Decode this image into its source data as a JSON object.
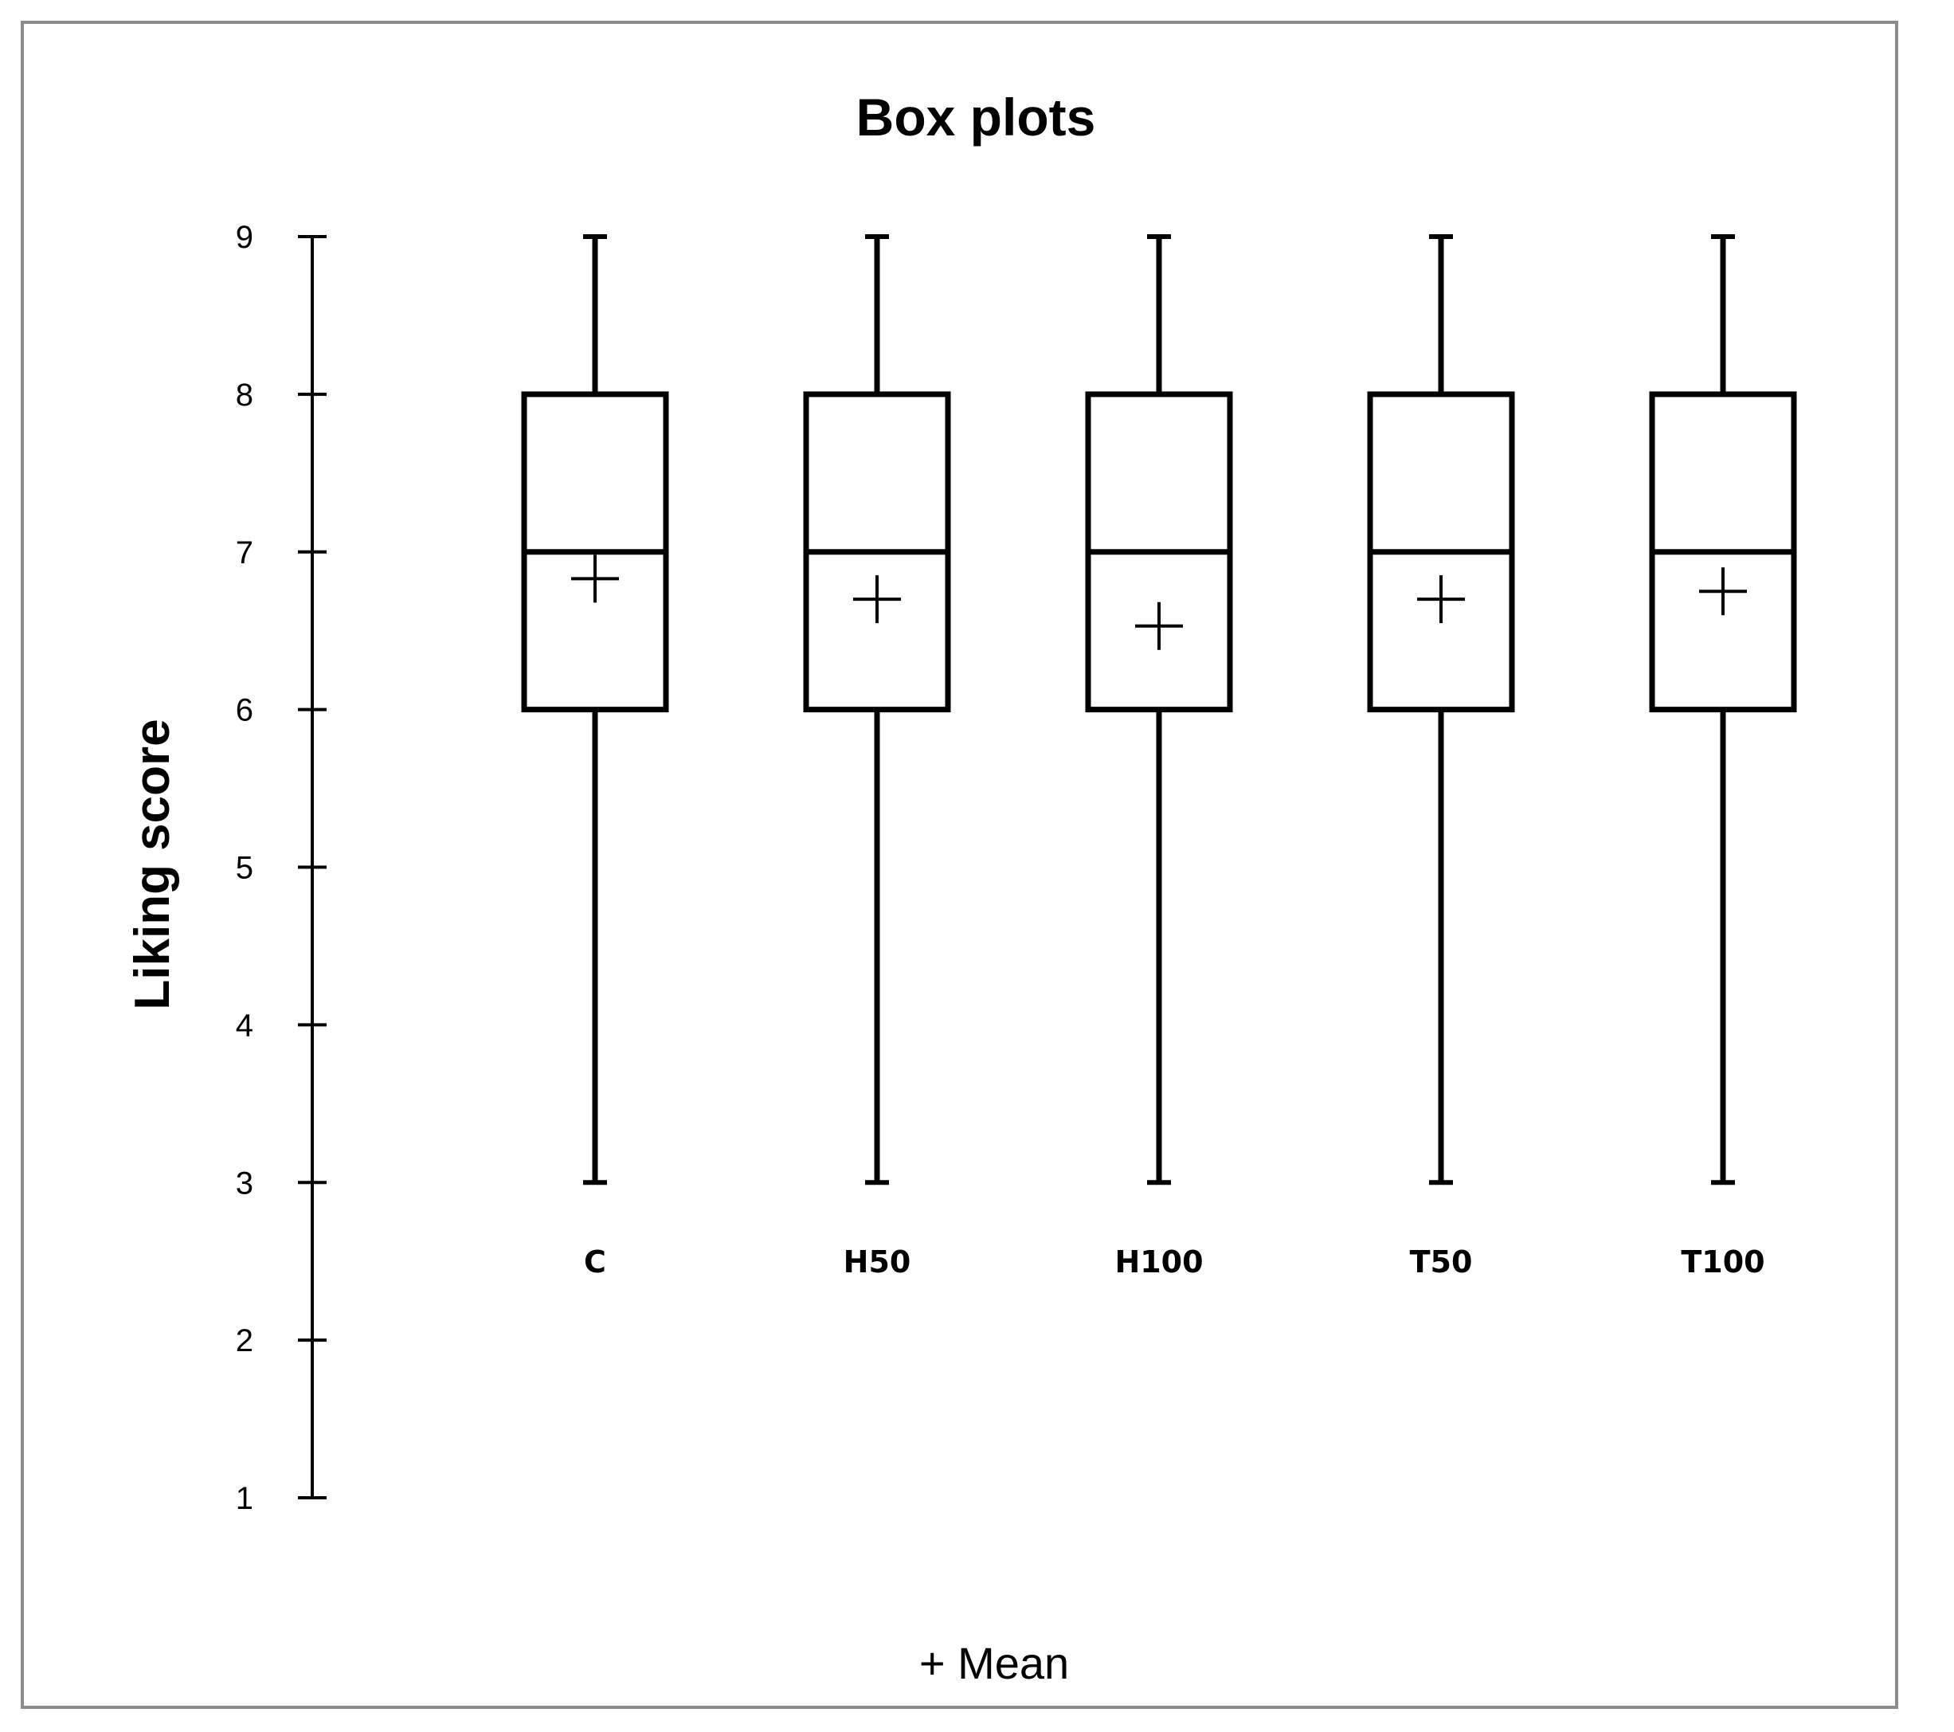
{
  "chart_data": {
    "type": "box",
    "title": "Box plots",
    "ylabel": "Liking score",
    "ylim": [
      1,
      9
    ],
    "yticks": [
      1,
      2,
      3,
      4,
      5,
      6,
      7,
      8,
      9
    ],
    "categories": [
      "C",
      "H50",
      "H100",
      "T50",
      "T100"
    ],
    "boxes": [
      {
        "min": 3,
        "q1": 6,
        "median": 7,
        "q3": 8,
        "max": 9,
        "mean": 6.83
      },
      {
        "min": 3,
        "q1": 6,
        "median": 7,
        "q3": 8,
        "max": 9,
        "mean": 6.7
      },
      {
        "min": 3,
        "q1": 6,
        "median": 7,
        "q3": 8,
        "max": 9,
        "mean": 6.53
      },
      {
        "min": 3,
        "q1": 6,
        "median": 7,
        "q3": 8,
        "max": 9,
        "mean": 6.7
      },
      {
        "min": 3,
        "q1": 6,
        "median": 7,
        "q3": 8,
        "max": 9,
        "mean": 6.75
      }
    ],
    "legend": "+ Mean",
    "grid": false,
    "colors": {
      "line": "#000000",
      "frame": "#8c8c8c"
    }
  }
}
